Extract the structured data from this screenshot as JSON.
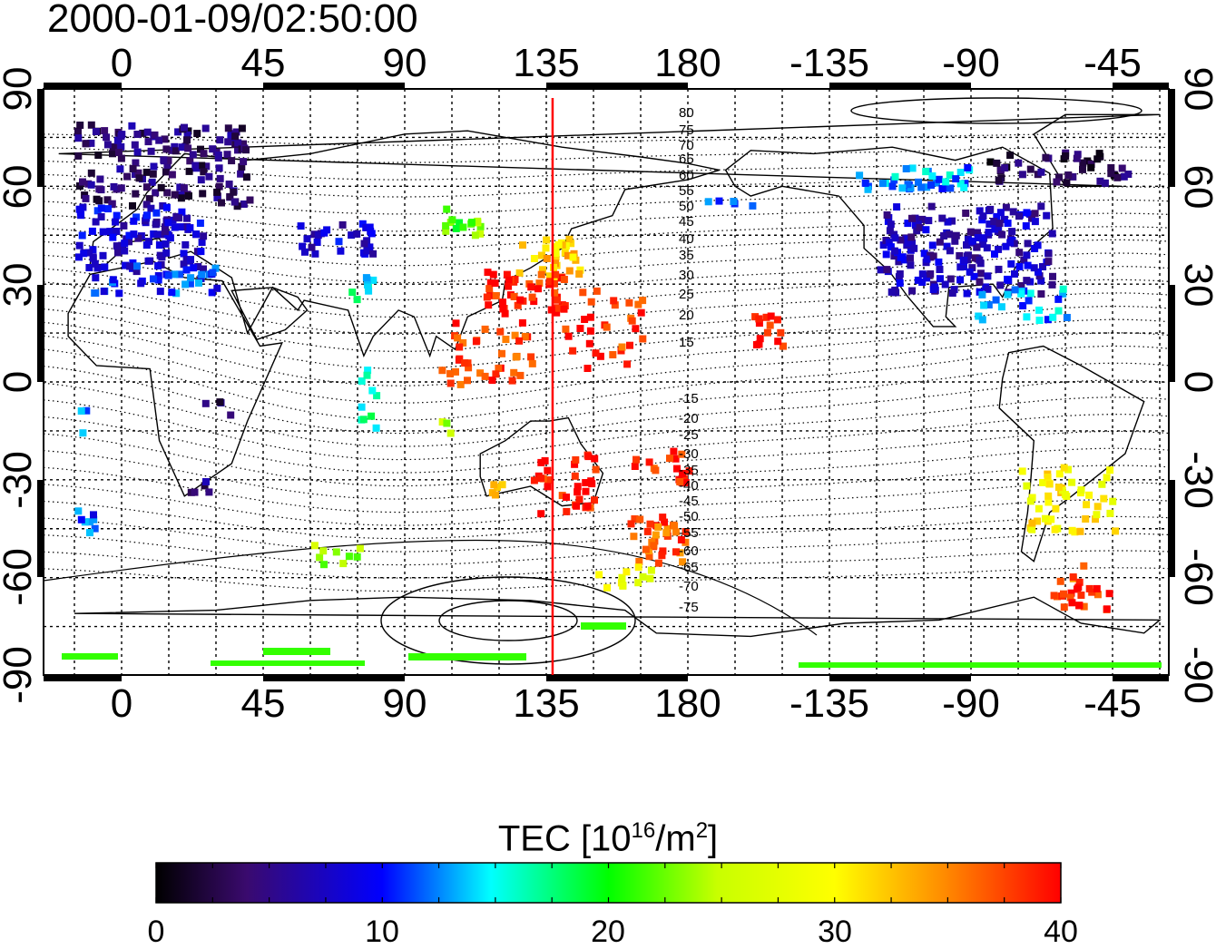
{
  "title": "2000-01-09/02:50:00",
  "map": {
    "lon_ticks": [
      "0",
      "45",
      "90",
      "135",
      "180",
      "-135",
      "-90",
      "-45"
    ],
    "lat_ticks": [
      "90",
      "60",
      "30",
      "0",
      "-30",
      "-60",
      "-90"
    ],
    "meridian_marker_lon": 137,
    "contour_labels": [
      "80",
      "75",
      "70",
      "65",
      "60",
      "55",
      "50",
      "45",
      "40",
      "35",
      "30",
      "25",
      "20",
      "15",
      "-15",
      "-20",
      "-25",
      "-30",
      "-35",
      "-40",
      "-45",
      "-50",
      "-55",
      "-60",
      "-65",
      "-70",
      "-75"
    ],
    "colors": {
      "marker_line": "#ff0000",
      "grid": "#000000"
    }
  },
  "colorbar": {
    "title_text": "TEC  [10",
    "title_exp": "16",
    "title_unit": "/m",
    "title_exp2": "2",
    "title_close": "]",
    "min": 0,
    "max": 40,
    "ticks": [
      "0",
      "10",
      "20",
      "30",
      "40"
    ]
  }
}
